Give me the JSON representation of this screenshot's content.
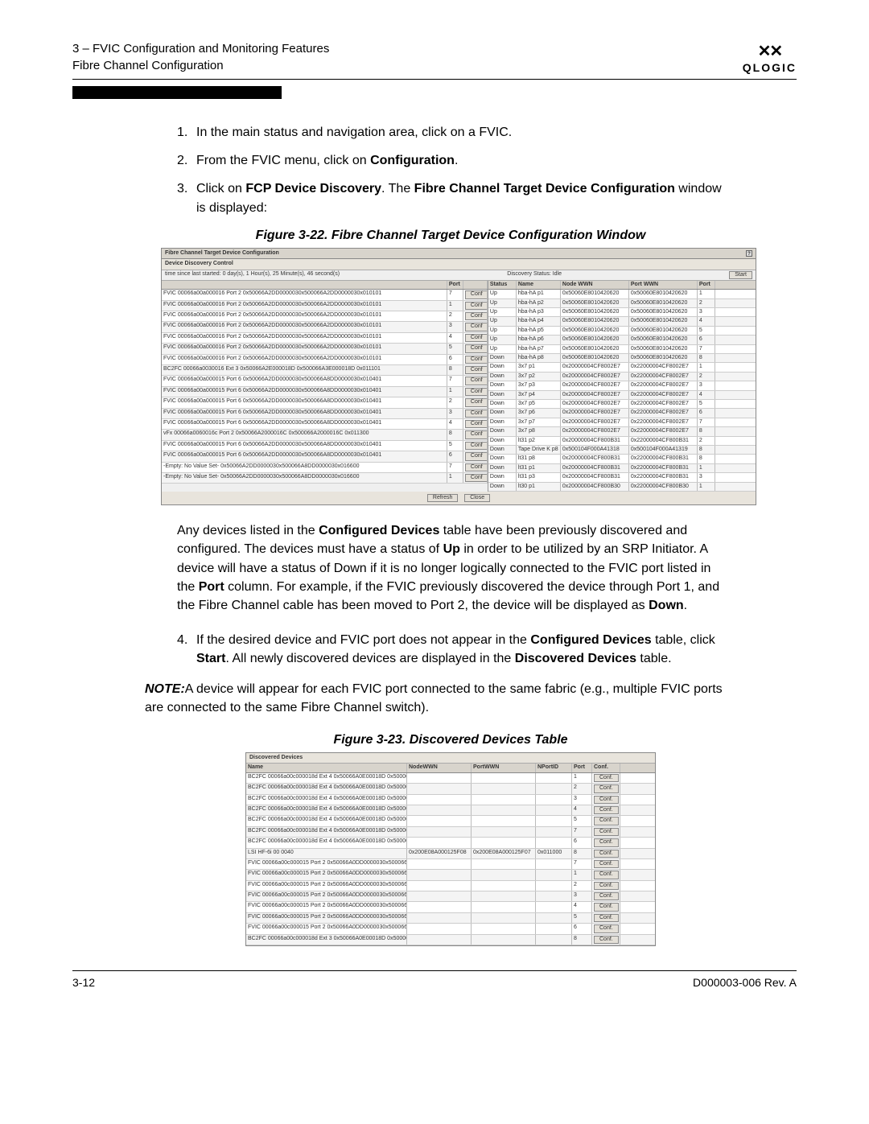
{
  "header": {
    "line1": "3 – FVIC Configuration and Monitoring Features",
    "line2": "Fibre Channel Configuration",
    "logo_text": "QLOGIC"
  },
  "steps": {
    "s1": "In the main status and navigation area, click on a FVIC.",
    "s2_pre": "From the FVIC menu, click on ",
    "s2_bold": "Configuration",
    "s3_pre": "Click on ",
    "s3_b1": "FCP Device Discovery",
    "s3_mid": ". The ",
    "s3_b2": "Fibre Channel Target Device Configuration",
    "s3_post": " window is displayed:",
    "s4_pre": "If the desired device and FVIC port does not appear in the ",
    "s4_b1": "Configured Devices",
    "s4_mid": " table, click ",
    "s4_b2": "Start",
    "s4_mid2": ". All newly discovered devices are displayed in the ",
    "s4_b3": "Discovered Devices",
    "s4_post": " table."
  },
  "fig1": {
    "caption": "Figure 3-22. Fibre Channel Target Device Configuration Window",
    "title": "Fibre Channel Target Device Configuration",
    "sub": "Device Discovery Control",
    "row_left": "time since last started: 0 day(s), 1 Hour(s), 25 Minute(s), 46 second(s)",
    "row_mid": "Discovery Status: Idle",
    "start": "Start",
    "conf": "Conf",
    "refresh": "Refresh",
    "close": "Close",
    "left_hdr": [
      "",
      "",
      "Port",
      ""
    ],
    "right_hdr": [
      "Status",
      "Name",
      "Node WWN",
      "Port WWN",
      "Port"
    ],
    "left_rows": [
      [
        "FVIC 00066a00a000016 Port 2  0x50066A2DD0000030x500066A2DD0000030x010101",
        "7"
      ],
      [
        "FVIC 00066a00a000016 Port 2  0x50066A2DD0000030x500066A2DD0000030x010101",
        "1"
      ],
      [
        "FVIC 00066a00a000016 Port 2  0x50066A2DD0000030x500066A2DD0000030x010101",
        "2"
      ],
      [
        "FVIC 00066a00a000016 Port 2  0x50066A2DD0000030x500066A2DD0000030x010101",
        "3"
      ],
      [
        "FVIC 00066a00a000016 Port 2  0x50066A2DD0000030x500066A2DD0000030x010101",
        "4"
      ],
      [
        "FVIC 00066a00a000016 Port 2  0x50066A2DD0000030x500066A2DD0000030x010101",
        "5"
      ],
      [
        "FVIC 00066a00a000016 Port 2  0x50066A2DD0000030x500066A2DD0000030x010101",
        "6"
      ],
      [
        "BC2FC 00066a0030016 Ext 3 0x50066A2E000018D 0x500066A3E000018D 0x011101",
        "8"
      ],
      [
        "FVIC 00066a00a000015 Port 6  0x50066A2DD0000030x500066A8DD0000030x010401",
        "7"
      ],
      [
        "FVIC 00066a00a000015 Port 6  0x50066A2DD0000030x500066A8DD0000030x010401",
        "1"
      ],
      [
        "FVIC 00066a00a000015 Port 6  0x50066A2DD0000030x500066A8DD0000030x010401",
        "2"
      ],
      [
        "FVIC 00066a00a000015 Port 6  0x50066A2DD0000030x500066A8DD0000030x010401",
        "3"
      ],
      [
        "FVIC 00066a00a000015 Port 6  0x50066A2DD0000030x500066A8DD0000030x010401",
        "4"
      ],
      [
        "vFx 00066a0060016c Port 2  0x50066A2000016C 0x500066A2000016C 0x011300",
        "8"
      ],
      [
        "FVIC 00066a00a000015 Port 6  0x50066A2DD0000030x500066A8DD0000030x010401",
        "5"
      ],
      [
        "FVIC 00066a00a000015 Port 6  0x50066A2DD0000030x500066A8DD0000030x010401",
        "6"
      ],
      [
        "-Empty: No Value Set-        0x50066A2DD0000030x500066A8DD0000030x016600",
        "7"
      ],
      [
        "-Empty: No Value Set-        0x50066A2DD0000030x500066A8DD0000030x016600",
        "1"
      ]
    ],
    "right_rows": [
      [
        "Up",
        "hba-hA p1",
        "0x50060E8010420620",
        "0x50060E8010420620",
        "1"
      ],
      [
        "Up",
        "hba-hA p2",
        "0x50060E8010420620",
        "0x50060E8010420620",
        "2"
      ],
      [
        "Up",
        "hba-hA p3",
        "0x50060E8010420620",
        "0x50060E8010420620",
        "3"
      ],
      [
        "Up",
        "hba-hA p4",
        "0x50060E8010420620",
        "0x50060E8010420620",
        "4"
      ],
      [
        "Up",
        "hba-hA p5",
        "0x50060E8010420620",
        "0x50060E8010420620",
        "5"
      ],
      [
        "Up",
        "hba-hA p6",
        "0x50060E8010420620",
        "0x50060E8010420620",
        "6"
      ],
      [
        "Up",
        "hba-hA p7",
        "0x50060E8010420620",
        "0x50060E8010420620",
        "7"
      ],
      [
        "Down",
        "hba-hA p8",
        "0x50060E8010420620",
        "0x50060E8010420620",
        "8"
      ],
      [
        "Down",
        "3x7 p1",
        "0x20000004CF8002E7",
        "0x22000004CF8002E7",
        "1"
      ],
      [
        "Down",
        "3x7 p2",
        "0x20000004CF8002E7",
        "0x22000004CF8002E7",
        "2"
      ],
      [
        "Down",
        "3x7 p3",
        "0x20000004CF8002E7",
        "0x22000004CF8002E7",
        "3"
      ],
      [
        "Down",
        "3x7 p4",
        "0x20000004CF8002E7",
        "0x22000004CF8002E7",
        "4"
      ],
      [
        "Down",
        "3x7 p5",
        "0x20000004CF8002E7",
        "0x22000004CF8002E7",
        "5"
      ],
      [
        "Down",
        "3x7 p6",
        "0x20000004CF8002E7",
        "0x22000004CF8002E7",
        "6"
      ],
      [
        "Down",
        "3x7 p7",
        "0x20000004CF8002E7",
        "0x22000004CF8002E7",
        "7"
      ],
      [
        "Down",
        "3x7 p8",
        "0x20000004CF8002E7",
        "0x22000004CF8002E7",
        "8"
      ],
      [
        "Down",
        "lt31 p2",
        "0x20000004CF800B31",
        "0x22000004CF800B31",
        "2"
      ],
      [
        "Down",
        "Tape Drive K p8",
        "0x500104F000A41318",
        "0x500104F000A41319",
        "8"
      ],
      [
        "Down",
        "lt31 p8",
        "0x20000004CF800B31",
        "0x22000004CF800B31",
        "8"
      ],
      [
        "Down",
        "lt31 p1",
        "0x20000004CF800B31",
        "0x22000004CF800B31",
        "1"
      ],
      [
        "Down",
        "lt31 p3",
        "0x20000004CF800B31",
        "0x22000004CF800B31",
        "3"
      ],
      [
        "Down",
        "lt30 p1",
        "0x20000004CF800B30",
        "0x22000004CF800B30",
        "1"
      ]
    ]
  },
  "para1": {
    "pre": "Any devices listed in the ",
    "b1": "Configured Devices",
    "mid1": " table have been previously discovered and configured. The devices must have a status of ",
    "b2": "Up",
    "mid2": " in order to be utilized by an SRP Initiator. A device will have a status of Down if it is no longer logically connected to the FVIC port listed in the ",
    "b3": "Port",
    "mid3": " column. For example, if the FVIC previously discovered the device through Port 1, and the Fibre Channel cable has been moved to Port 2, the device will be displayed as ",
    "b4": "Down",
    "post": "."
  },
  "note": {
    "label": "NOTE:",
    "text": "A device will appear for each FVIC port connected to the same fabric (e.g., multiple FVIC ports are connected to the same Fibre Channel switch)."
  },
  "fig2": {
    "caption": "Figure 3-23. Discovered Devices Table",
    "title": "Discovered Devices",
    "hdr": [
      "Name",
      "NodeWWN",
      "PortWWN",
      "NPortID",
      "Port",
      "Conf."
    ],
    "rows": [
      [
        "BC2FC 00066a00c000018d Ext 4 0x50066A0E00018D 0x500066A4E000018D 0x010000",
        "",
        "",
        "",
        "1",
        "Conf."
      ],
      [
        "BC2FC 00066a00c000018d Ext 4 0x50066A0E00018D 0x500066A4E000018D 0x010000",
        "",
        "",
        "",
        "2",
        "Conf."
      ],
      [
        "BC2FC 00066a00c000018d Ext 4 0x50066A0E00018D 0x500066A4E000018D 0x010000",
        "",
        "",
        "",
        "3",
        "Conf."
      ],
      [
        "BC2FC 00066a00c000018d Ext 4 0x50066A0E00018D 0x500066A4E000018D 0x010000",
        "",
        "",
        "",
        "4",
        "Conf."
      ],
      [
        "BC2FC 00066a00c000018d Ext 4 0x50066A0E00018D 0x500066A4E000018D 0x010000",
        "",
        "",
        "",
        "5",
        "Conf."
      ],
      [
        "BC2FC 00066a00c000018d Ext 4 0x50066A0E00018D 0x500066A4E000018D 0x010000",
        "",
        "",
        "",
        "7",
        "Conf."
      ],
      [
        "BC2FC 00066a00c000018d Ext 4 0x50066A0E00018D 0x500066A4E000018D 0x010000",
        "",
        "",
        "",
        "6",
        "Conf."
      ],
      [
        "LSI HF-6i 00 0040",
        "0x200E08A000125F08",
        "0x200E08A000125F07",
        "0x011000",
        "8",
        "Conf."
      ],
      [
        "FVIC 00066a00c000015 Port 2 0x50066A0DD0000030x500066A2DD0000030x010101",
        "",
        "",
        "",
        "7",
        "Conf."
      ],
      [
        "FVIC 00066a00c000015 Port 2 0x50066A0DD0000030x500066A2DD0000030x010101",
        "",
        "",
        "",
        "1",
        "Conf."
      ],
      [
        "FVIC 00066a00c000015 Port 2 0x50066A0DD0000030x500066A2DD0000030x010101",
        "",
        "",
        "",
        "2",
        "Conf."
      ],
      [
        "FVIC 00066a00c000015 Port 2 0x50066A0DD0000030x500066A2DD0000030x010101",
        "",
        "",
        "",
        "3",
        "Conf."
      ],
      [
        "FVIC 00066a00c000015 Port 2 0x50066A0DD0000030x500066A2DD0000030x010101",
        "",
        "",
        "",
        "4",
        "Conf."
      ],
      [
        "FVIC 00066a00c000015 Port 2 0x50066A0DD0000030x500066A2DD0000030x010101",
        "",
        "",
        "",
        "5",
        "Conf."
      ],
      [
        "FVIC 00066a00c000015 Port 2 0x50066A0DD0000030x500066A2DD0000030x010101",
        "",
        "",
        "",
        "6",
        "Conf."
      ],
      [
        "BC2FC 00066a00c000018d Ext 3 0x50066A0E00018D 0x500066A3E000018D 0x011101",
        "",
        "",
        "",
        "8",
        "Conf."
      ]
    ]
  },
  "footer": {
    "left": "3-12",
    "right": "D000003-006 Rev. A"
  }
}
